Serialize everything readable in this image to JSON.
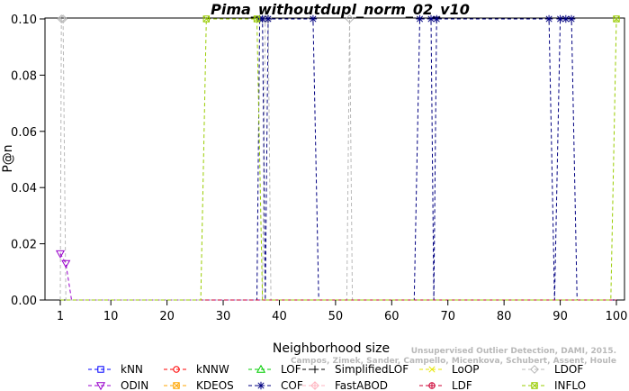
{
  "chart_data": {
    "type": "line",
    "title": "Pima_withoutdupl_norm_02_v10",
    "xlabel": "Neighborhood size",
    "ylabel": "P@n",
    "xlim": [
      1,
      100
    ],
    "ylim": [
      0,
      0.1
    ],
    "xticks": [
      1,
      10,
      20,
      30,
      40,
      50,
      60,
      70,
      80,
      90,
      100
    ],
    "yticks": [
      "0.00",
      "0.02",
      "0.04",
      "0.06",
      "0.08",
      "0.10"
    ],
    "grid": false,
    "legend_position": "bottom",
    "watermark": "Campos, Zimek, Sander, Campello, Micenkova, Schubert, Assent, Houle",
    "watermark_line1": "Unsupervised Outlier Detection, DAMI, 2015.",
    "series": [
      {
        "name": "kNN",
        "color": "#0000ff",
        "marker": "square",
        "points": [
          [
            1,
            0
          ],
          [
            100,
            0
          ]
        ]
      },
      {
        "name": "kNNW",
        "color": "#ff0000",
        "marker": "circle",
        "points": [
          [
            1,
            0
          ],
          [
            100,
            0
          ]
        ]
      },
      {
        "name": "LOF",
        "color": "#00cc00",
        "marker": "triangle-up",
        "points": [
          [
            1,
            0
          ],
          [
            100,
            0
          ]
        ]
      },
      {
        "name": "SimplifiedLOF",
        "color": "#000000",
        "marker": "plus",
        "points": [
          [
            1,
            0
          ],
          [
            100,
            0
          ]
        ]
      },
      {
        "name": "LoOP",
        "color": "#e6e600",
        "marker": "x",
        "points": [
          [
            1,
            0
          ],
          [
            100,
            0
          ]
        ]
      },
      {
        "name": "LDOF",
        "color": "#b8b8b8",
        "marker": "diamond",
        "points": [
          [
            1,
            0
          ],
          [
            1.2,
            0.1
          ],
          [
            1.5,
            0.1
          ],
          [
            2,
            0
          ],
          [
            37,
            0
          ],
          [
            37.5,
            0.1
          ],
          [
            38,
            0.1
          ],
          [
            38.5,
            0
          ],
          [
            52,
            0
          ],
          [
            52.5,
            0.1
          ],
          [
            53,
            0
          ],
          [
            100,
            0
          ]
        ]
      },
      {
        "name": "ODIN",
        "color": "#9900cc",
        "marker": "triangle-down",
        "points": [
          [
            1,
            0.0165
          ],
          [
            2,
            0.013
          ],
          [
            3,
            0
          ],
          [
            100,
            0
          ]
        ]
      },
      {
        "name": "KDEOS",
        "color": "#ffa500",
        "marker": "square-x",
        "points": [
          [
            1,
            0
          ],
          [
            100,
            0
          ]
        ]
      },
      {
        "name": "COF",
        "color": "#000080",
        "marker": "asterisk",
        "points": [
          [
            1,
            0
          ],
          [
            36,
            0
          ],
          [
            36.5,
            0.1
          ],
          [
            37,
            0.1
          ],
          [
            37.5,
            0
          ],
          [
            38,
            0.1
          ],
          [
            46,
            0.1
          ],
          [
            47,
            0
          ],
          [
            64,
            0
          ],
          [
            65,
            0.1
          ],
          [
            67,
            0.1
          ],
          [
            67.5,
            0
          ],
          [
            68,
            0.1
          ],
          [
            88,
            0.1
          ],
          [
            89,
            0
          ],
          [
            90,
            0.1
          ],
          [
            91,
            0.1
          ],
          [
            92,
            0.1
          ],
          [
            93,
            0
          ],
          [
            100,
            0
          ]
        ]
      },
      {
        "name": "FastABOD",
        "color": "#ffb6c1",
        "marker": "diamond-plus",
        "points": [
          [
            1,
            0
          ],
          [
            100,
            0
          ]
        ]
      },
      {
        "name": "LDF",
        "color": "#cc0033",
        "marker": "circle-plus",
        "points": [
          [
            1,
            0
          ],
          [
            100,
            0
          ]
        ]
      },
      {
        "name": "INFLO",
        "color": "#99cc00",
        "marker": "square-x2",
        "points": [
          [
            1,
            0
          ],
          [
            26,
            0
          ],
          [
            27,
            0.1
          ],
          [
            36,
            0.1
          ],
          [
            37,
            0
          ],
          [
            99,
            0
          ],
          [
            100,
            0.1
          ]
        ]
      }
    ]
  }
}
